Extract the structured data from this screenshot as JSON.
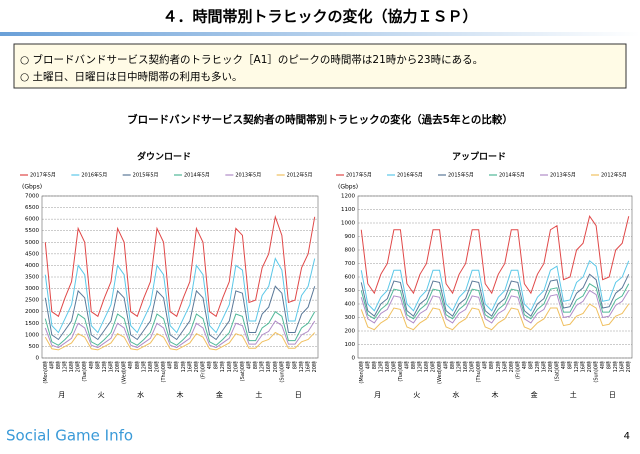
{
  "header": {
    "title": "４．時間帯別トラヒックの変化（協力ＩＳＰ）"
  },
  "notes": [
    "○ ブロードバンドサービス契約者のトラヒック［A1］のピークの時間帯は21時から23時にある。",
    "○ 土曜日、日曜日は日中時間帯の利用も多い。"
  ],
  "section_title": "ブロードバンドサービス契約者の時間帯別トラヒックの変化（過去5年との比較）",
  "chart_data": [
    {
      "type": "line",
      "title": "ダウンロード",
      "y_label": "(Gbps)",
      "categories": [
        "(Mon)0時",
        "4時",
        "8時",
        "12時",
        "16時",
        "20時",
        "(Tue)0時",
        "4時",
        "8時",
        "12時",
        "16時",
        "20時",
        "(Wed)0時",
        "4時",
        "8時",
        "12時",
        "16時",
        "20時",
        "(Thu)0時",
        "4時",
        "8時",
        "12時",
        "16時",
        "20時",
        "(Fri)0時",
        "4時",
        "8時",
        "12時",
        "16時",
        "20時",
        "(Sat)0時",
        "4時",
        "8時",
        "12時",
        "16時",
        "20時",
        "(Sun)0時",
        "4時",
        "8時",
        "12時",
        "16時",
        "20時"
      ],
      "groups": [
        "月",
        "火",
        "水",
        "木",
        "金",
        "土",
        "日"
      ],
      "ylim": [
        0,
        7000
      ],
      "yticks": [
        0,
        500,
        1000,
        1500,
        2000,
        2500,
        3000,
        3500,
        4000,
        4500,
        5000,
        5500,
        6000,
        6500,
        7000
      ],
      "grid": true,
      "series": [
        {
          "name": "2017年5月",
          "color": "#e04848",
          "values": [
            5000,
            2000,
            1800,
            2600,
            3300,
            5600,
            5000,
            2000,
            1800,
            2600,
            3300,
            5600,
            5000,
            2000,
            1800,
            2600,
            3300,
            5600,
            5000,
            2000,
            1800,
            2600,
            3300,
            5600,
            5000,
            2000,
            1800,
            2600,
            3300,
            5600,
            5300,
            2400,
            2500,
            3900,
            4500,
            6100,
            5300,
            2400,
            2500,
            3900,
            4500,
            6100
          ]
        },
        {
          "name": "2016年5月",
          "color": "#5cc8e8",
          "values": [
            3600,
            1400,
            1100,
            1700,
            2300,
            4000,
            3600,
            1400,
            1100,
            1700,
            2300,
            4000,
            3600,
            1400,
            1100,
            1700,
            2300,
            4000,
            3600,
            1400,
            1100,
            1700,
            2300,
            4000,
            3600,
            1400,
            1100,
            1700,
            2300,
            4000,
            3800,
            1600,
            1600,
            2700,
            3100,
            4300,
            3800,
            1600,
            1600,
            2700,
            3100,
            4300
          ]
        },
        {
          "name": "2015年5月",
          "color": "#5a7898",
          "values": [
            2600,
            1000,
            800,
            1200,
            1600,
            2900,
            2600,
            1000,
            800,
            1200,
            1600,
            2900,
            2600,
            1000,
            800,
            1200,
            1600,
            2900,
            2600,
            1000,
            800,
            1200,
            1600,
            2900,
            2600,
            1000,
            800,
            1200,
            1600,
            2900,
            2800,
            1100,
            1100,
            1900,
            2200,
            3100,
            2800,
            1100,
            1100,
            1900,
            2200,
            3100
          ]
        },
        {
          "name": "2014年5月",
          "color": "#50b898",
          "values": [
            1700,
            700,
            550,
            800,
            1100,
            1900,
            1700,
            700,
            550,
            800,
            1100,
            1900,
            1700,
            700,
            550,
            800,
            1100,
            1900,
            1700,
            700,
            550,
            800,
            1100,
            1900,
            1700,
            700,
            550,
            800,
            1100,
            1900,
            1800,
            750,
            750,
            1300,
            1500,
            2000,
            1800,
            750,
            750,
            1300,
            1500,
            2000
          ]
        },
        {
          "name": "2013年5月",
          "color": "#b08cc8",
          "values": [
            1300,
            550,
            450,
            650,
            850,
            1500,
            1300,
            550,
            450,
            650,
            850,
            1500,
            1300,
            550,
            450,
            650,
            850,
            1500,
            1300,
            550,
            450,
            650,
            850,
            1500,
            1300,
            550,
            450,
            650,
            850,
            1500,
            1400,
            600,
            600,
            1000,
            1150,
            1600,
            1400,
            600,
            600,
            1000,
            1150,
            1600
          ]
        },
        {
          "name": "2012年5月",
          "color": "#f0c060",
          "values": [
            900,
            400,
            350,
            500,
            650,
            1050,
            900,
            400,
            350,
            500,
            650,
            1050,
            900,
            400,
            350,
            500,
            650,
            1050,
            900,
            400,
            350,
            500,
            650,
            1050,
            900,
            400,
            350,
            500,
            650,
            1050,
            950,
            420,
            420,
            700,
            800,
            1100,
            950,
            420,
            420,
            700,
            800,
            1100
          ]
        }
      ]
    },
    {
      "type": "line",
      "title": "アップロード",
      "y_label": "(Gbps)",
      "categories": [
        "(Mon)0時",
        "4時",
        "8時",
        "12時",
        "16時",
        "20時",
        "(Tue)0時",
        "4時",
        "8時",
        "12時",
        "16時",
        "20時",
        "(Wed)0時",
        "4時",
        "8時",
        "12時",
        "16時",
        "20時",
        "(Thu)0時",
        "4時",
        "8時",
        "12時",
        "16時",
        "20時",
        "(Fri)0時",
        "4時",
        "8時",
        "12時",
        "16時",
        "20時",
        "(Sat)0時",
        "4時",
        "8時",
        "12時",
        "16時",
        "20時",
        "(Sun)0時",
        "4時",
        "8時",
        "12時",
        "16時",
        "20時"
      ],
      "groups": [
        "月",
        "火",
        "水",
        "木",
        "金",
        "土",
        "日"
      ],
      "ylim": [
        0,
        1200
      ],
      "yticks": [
        0,
        100,
        200,
        300,
        400,
        500,
        600,
        700,
        800,
        900,
        1000,
        1100,
        1200
      ],
      "grid": true,
      "series": [
        {
          "name": "2017年5月",
          "color": "#e04848",
          "values": [
            950,
            550,
            480,
            620,
            700,
            950,
            950,
            550,
            480,
            620,
            700,
            950,
            950,
            550,
            480,
            620,
            700,
            950,
            950,
            550,
            480,
            620,
            700,
            950,
            950,
            550,
            480,
            620,
            700,
            950,
            980,
            580,
            600,
            800,
            850,
            1050,
            980,
            580,
            600,
            800,
            850,
            1050
          ]
        },
        {
          "name": "2016年5月",
          "color": "#5cc8e8",
          "values": [
            650,
            400,
            350,
            450,
            500,
            650,
            650,
            400,
            350,
            450,
            500,
            650,
            650,
            400,
            350,
            450,
            500,
            650,
            650,
            400,
            350,
            450,
            500,
            650,
            650,
            400,
            350,
            450,
            500,
            650,
            680,
            420,
            430,
            560,
            600,
            720,
            680,
            420,
            430,
            560,
            600,
            720
          ]
        },
        {
          "name": "2015年5月",
          "color": "#5a7898",
          "values": [
            560,
            350,
            310,
            400,
            440,
            570,
            560,
            350,
            310,
            400,
            440,
            570,
            560,
            350,
            310,
            400,
            440,
            570,
            560,
            350,
            310,
            400,
            440,
            570,
            560,
            350,
            310,
            400,
            440,
            570,
            580,
            370,
            380,
            480,
            520,
            620,
            580,
            370,
            380,
            480,
            520,
            620
          ]
        },
        {
          "name": "2014年5月",
          "color": "#50b898",
          "values": [
            500,
            320,
            290,
            360,
            400,
            510,
            500,
            320,
            290,
            360,
            400,
            510,
            500,
            320,
            290,
            360,
            400,
            510,
            500,
            320,
            290,
            360,
            400,
            510,
            500,
            320,
            290,
            360,
            400,
            510,
            520,
            340,
            340,
            430,
            460,
            550,
            520,
            340,
            340,
            430,
            460,
            550
          ]
        },
        {
          "name": "2013年5月",
          "color": "#b08cc8",
          "values": [
            450,
            290,
            260,
            330,
            360,
            460,
            450,
            290,
            260,
            330,
            360,
            460,
            450,
            290,
            260,
            330,
            360,
            460,
            450,
            290,
            260,
            330,
            360,
            460,
            450,
            290,
            260,
            330,
            360,
            460,
            470,
            300,
            310,
            390,
            420,
            500,
            470,
            300,
            310,
            390,
            420,
            500
          ]
        },
        {
          "name": "2012年5月",
          "color": "#f0c060",
          "values": [
            360,
            230,
            210,
            260,
            290,
            370,
            360,
            230,
            210,
            260,
            290,
            370,
            360,
            230,
            210,
            260,
            290,
            370,
            360,
            230,
            210,
            260,
            290,
            370,
            360,
            230,
            210,
            260,
            290,
            370,
            370,
            240,
            250,
            310,
            330,
            400,
            370,
            240,
            250,
            310,
            330,
            400
          ]
        }
      ]
    }
  ],
  "footer": {
    "logo": "Social Game Info",
    "page": "4"
  }
}
